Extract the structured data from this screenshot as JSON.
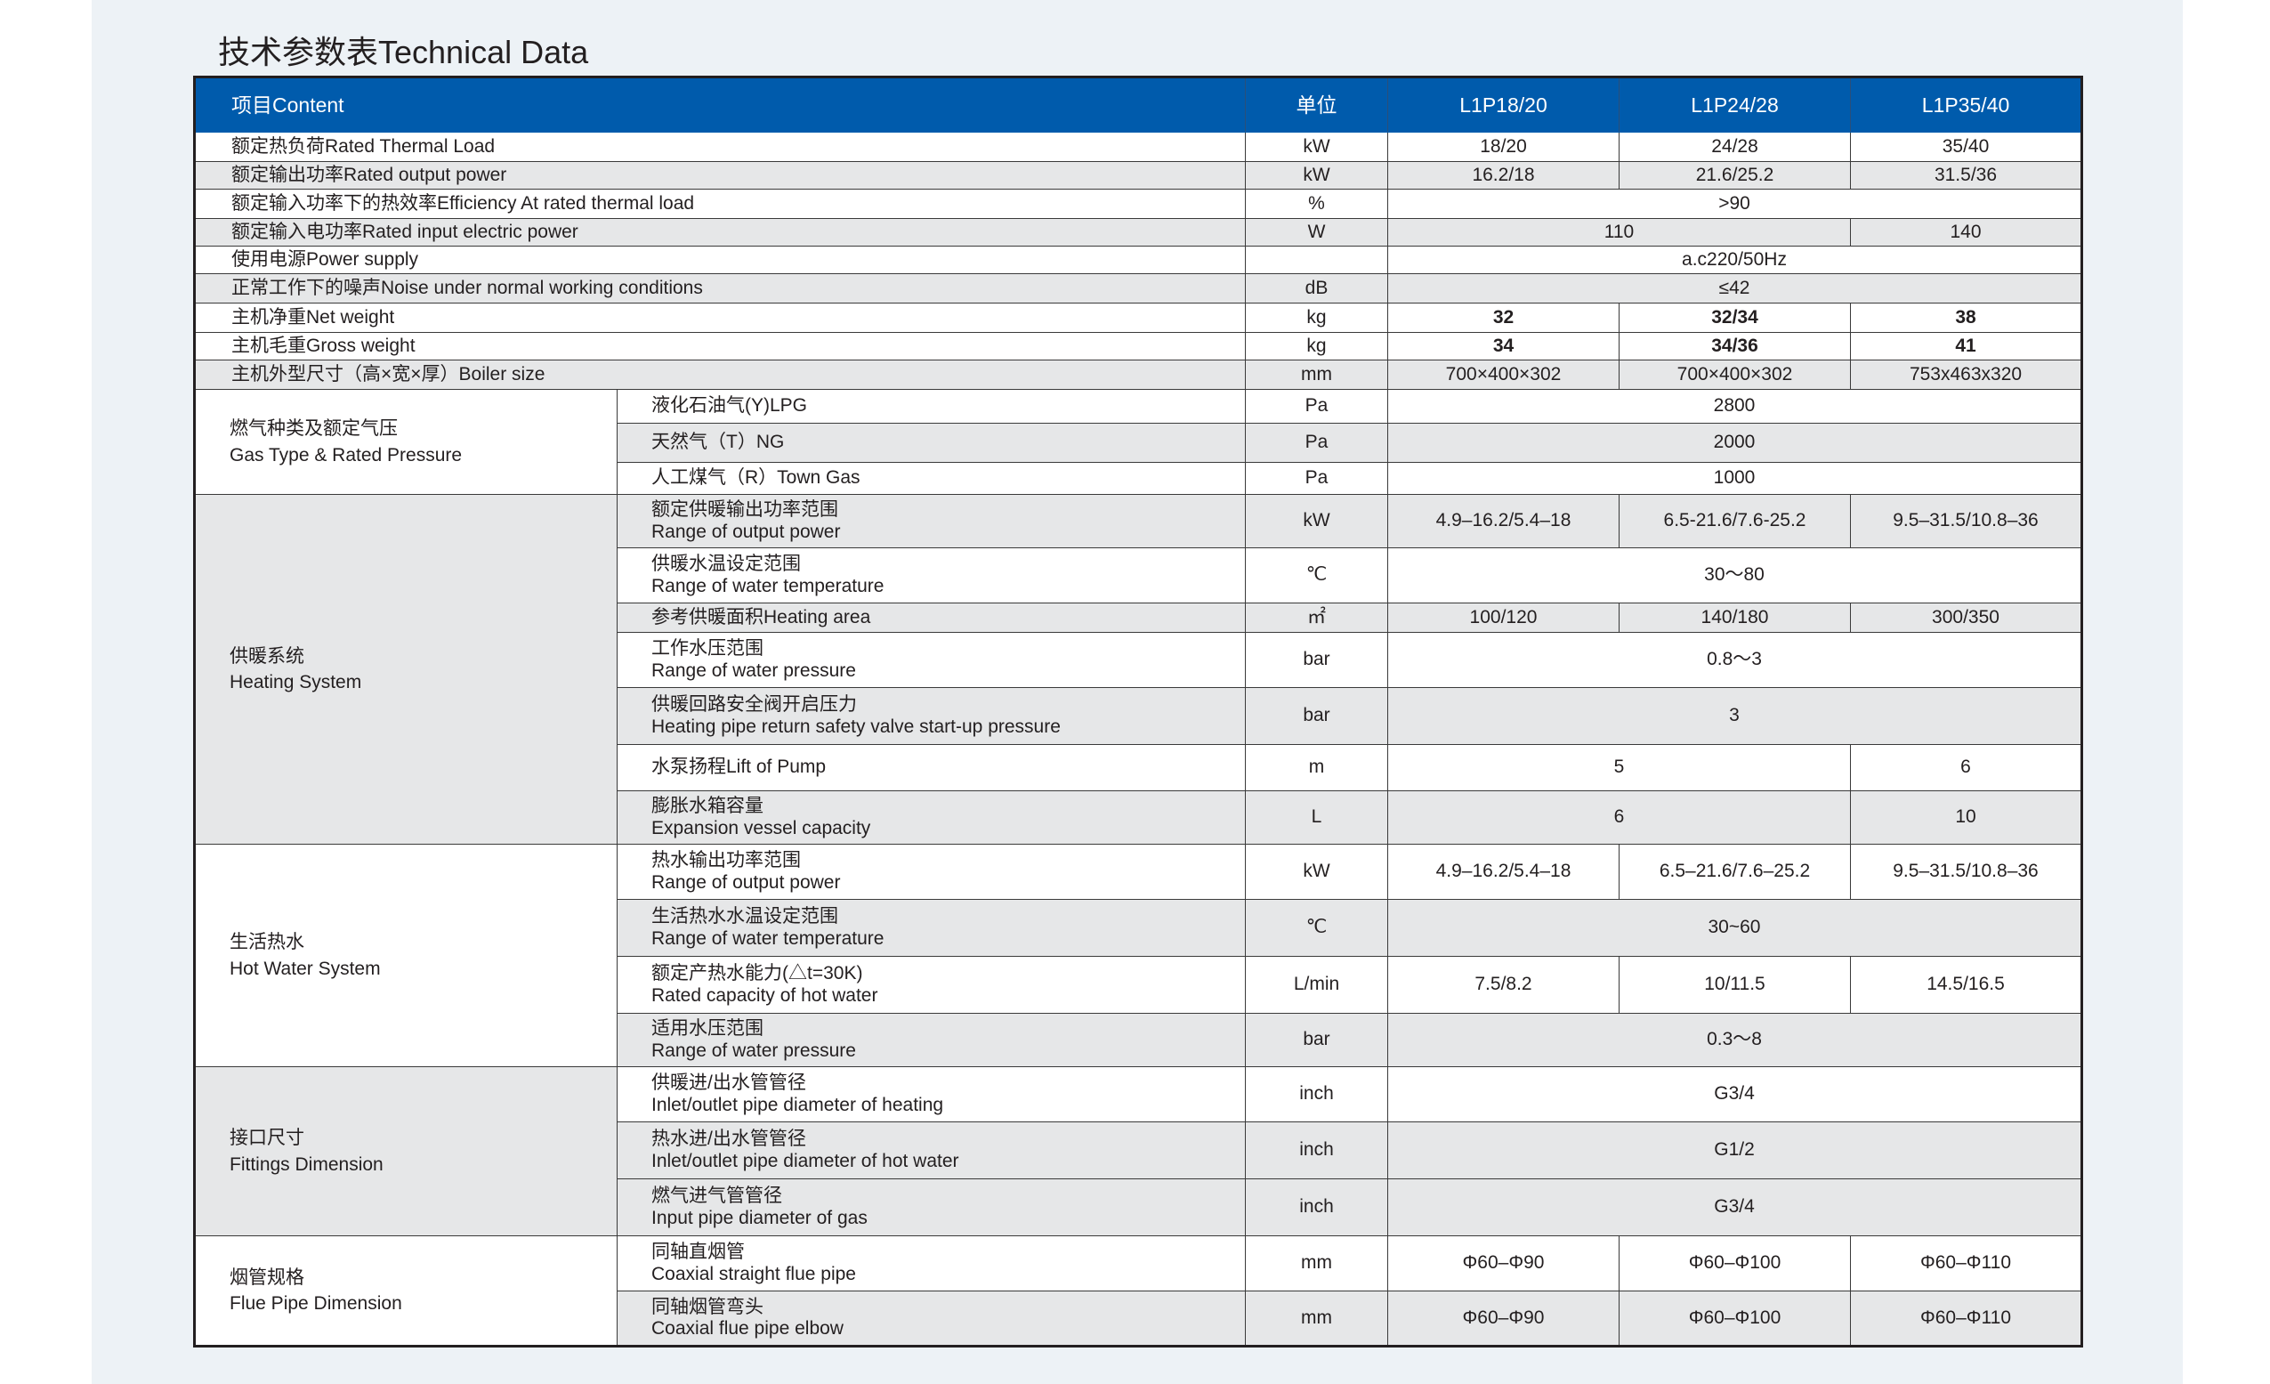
{
  "title": "技术参数表Technical Data",
  "header": {
    "content": "项目Content",
    "unit": "单位",
    "models": [
      "L1P18/20",
      "L1P24/28",
      "L1P35/40"
    ]
  },
  "colors": {
    "header_bg": "#005bac",
    "row_gray": "#e6e7e8",
    "page_bg": "#edf2f6"
  },
  "simple_rows": [
    {
      "label": "额定热负荷Rated Thermal Load",
      "unit": "kW",
      "bg": "w",
      "values": [
        {
          "text": "18/20",
          "span": 1
        },
        {
          "text": "24/28",
          "span": 1
        },
        {
          "text": "35/40",
          "span": 1
        }
      ]
    },
    {
      "label": "额定输出功率Rated output power",
      "unit": "kW",
      "bg": "g",
      "values": [
        {
          "text": "16.2/18",
          "span": 1
        },
        {
          "text": "21.6/25.2",
          "span": 1
        },
        {
          "text": "31.5/36",
          "span": 1
        }
      ]
    },
    {
      "label": "额定输入功率下的热效率Efficiency At rated thermal load",
      "unit": "%",
      "bg": "w",
      "values": [
        {
          "text": ">90",
          "span": 3
        }
      ]
    },
    {
      "label": "额定输入电功率Rated input electric power",
      "unit": "W",
      "bg": "g",
      "values": [
        {
          "text": "110",
          "span": 2
        },
        {
          "text": "140",
          "span": 1
        }
      ]
    },
    {
      "label": "使用电源Power supply",
      "unit": "",
      "bg": "w",
      "values": [
        {
          "text": "a.c220/50Hz",
          "span": 3
        }
      ]
    },
    {
      "label": "正常工作下的噪声Noise under normal working conditions",
      "unit": "dB",
      "bg": "g",
      "values": [
        {
          "text": "≤42",
          "span": 3
        }
      ]
    },
    {
      "label": "主机净重Net weight",
      "unit": "kg",
      "bg": "w",
      "bold": true,
      "values": [
        {
          "text": "32",
          "span": 1
        },
        {
          "text": "32/34",
          "span": 1
        },
        {
          "text": "38",
          "span": 1
        }
      ]
    },
    {
      "label": "主机毛重Gross weight",
      "unit": "kg",
      "bg": "w",
      "bold": true,
      "values": [
        {
          "text": "34",
          "span": 1
        },
        {
          "text": "34/36",
          "span": 1
        },
        {
          "text": "41",
          "span": 1
        }
      ]
    },
    {
      "label": "主机外型尺寸（高×宽×厚）Boiler size",
      "unit": "mm",
      "bg": "g",
      "values": [
        {
          "text": "700×400×302",
          "span": 1
        },
        {
          "text": "700×400×302",
          "span": 1
        },
        {
          "text": "753x463x320",
          "span": 1
        }
      ]
    }
  ],
  "groups": [
    {
      "label_cn": "燃气种类及额定气压",
      "label_en": "Gas Type & Rated Pressure",
      "bg": "w",
      "rows": [
        {
          "cn": "液化石油气(Y)LPG",
          "en": "",
          "unit": "Pa",
          "bg": "w",
          "values": [
            {
              "text": "2800",
              "span": 3
            }
          ]
        },
        {
          "cn": "天然气（T）NG",
          "en": "",
          "unit": "Pa",
          "bg": "g",
          "values": [
            {
              "text": "2000",
              "span": 3
            }
          ]
        },
        {
          "cn": "人工煤气（R）Town Gas",
          "en": "",
          "unit": "Pa",
          "bg": "w",
          "values": [
            {
              "text": "1000",
              "span": 3
            }
          ]
        }
      ]
    },
    {
      "label_cn": "供暖系统",
      "label_en": "Heating System",
      "bg": "g",
      "rows": [
        {
          "cn": "额定供暖输出功率范围",
          "en": "Range of output power",
          "unit": "kW",
          "bg": "g",
          "values": [
            {
              "text": "4.9–16.2/5.4–18",
              "span": 1
            },
            {
              "text": "6.5-21.6/7.6-25.2",
              "span": 1
            },
            {
              "text": "9.5–31.5/10.8–36",
              "span": 1
            }
          ]
        },
        {
          "cn": "供暖水温设定范围",
          "en": "Range of water temperature",
          "unit": "℃",
          "bg": "w",
          "values": [
            {
              "text": "30～80",
              "span": 3
            }
          ]
        },
        {
          "cn": "参考供暖面积Heating area",
          "en": "",
          "unit": "㎡",
          "bg": "g",
          "values": [
            {
              "text": "100/120",
              "span": 1
            },
            {
              "text": "140/180",
              "span": 1
            },
            {
              "text": "300/350",
              "span": 1
            }
          ]
        },
        {
          "cn": "工作水压范围",
          "en": "Range of water pressure",
          "unit": "bar",
          "bg": "w",
          "values": [
            {
              "text": "0.8～3",
              "span": 3
            }
          ]
        },
        {
          "cn": "供暖回路安全阀开启压力",
          "en": "Heating pipe return safety valve start-up pressure",
          "unit": "bar",
          "bg": "g",
          "values": [
            {
              "text": "3",
              "span": 3
            }
          ]
        },
        {
          "cn": "水泵扬程Lift of Pump",
          "en": "",
          "unit": "m",
          "bg": "w",
          "values": [
            {
              "text": "5",
              "span": 2
            },
            {
              "text": "6",
              "span": 1
            }
          ]
        },
        {
          "cn": "膨胀水箱容量",
          "en": "Expansion vessel capacity",
          "unit": "L",
          "bg": "g",
          "values": [
            {
              "text": "6",
              "span": 2
            },
            {
              "text": "10",
              "span": 1
            }
          ]
        }
      ]
    },
    {
      "label_cn": "生活热水",
      "label_en": "Hot Water System",
      "bg": "w",
      "rows": [
        {
          "cn": "热水输出功率范围",
          "en": "Range of output power",
          "unit": "kW",
          "bg": "w",
          "values": [
            {
              "text": "4.9–16.2/5.4–18",
              "span": 1
            },
            {
              "text": "6.5–21.6/7.6–25.2",
              "span": 1
            },
            {
              "text": "9.5–31.5/10.8–36",
              "span": 1
            }
          ]
        },
        {
          "cn": "生活热水水温设定范围",
          "en": "Range of water temperature",
          "unit": "℃",
          "bg": "g",
          "values": [
            {
              "text": "30~60",
              "span": 3
            }
          ]
        },
        {
          "cn": "额定产热水能力(△t=30K)",
          "en": "Rated capacity of hot water",
          "unit": "L/min",
          "bg": "w",
          "values": [
            {
              "text": "7.5/8.2",
              "span": 1
            },
            {
              "text": "10/11.5",
              "span": 1
            },
            {
              "text": "14.5/16.5",
              "span": 1
            }
          ]
        },
        {
          "cn": "适用水压范围",
          "en": "Range of water pressure",
          "unit": "bar",
          "bg": "g",
          "values": [
            {
              "text": "0.3～8",
              "span": 3
            }
          ]
        }
      ]
    },
    {
      "label_cn": "接口尺寸",
      "label_en": "Fittings Dimension",
      "bg": "g",
      "rows": [
        {
          "cn": "供暖进/出水管管径",
          "en": "Inlet/outlet pipe diameter of heating",
          "unit": "inch",
          "bg": "w",
          "values": [
            {
              "text": "G3/4",
              "span": 3
            }
          ]
        },
        {
          "cn": "热水进/出水管管径",
          "en": "Inlet/outlet pipe diameter of hot water",
          "unit": "inch",
          "bg": "g",
          "values": [
            {
              "text": "G1/2",
              "span": 3
            }
          ]
        },
        {
          "cn": "燃气进气管管径",
          "en": "Input pipe diameter of gas",
          "unit": "inch",
          "bg": "g",
          "values": [
            {
              "text": "G3/4",
              "span": 3
            }
          ]
        }
      ]
    },
    {
      "label_cn": "烟管规格",
      "label_en": "Flue Pipe Dimension",
      "bg": "w",
      "rows": [
        {
          "cn": "同轴直烟管",
          "en": "Coaxial straight flue pipe",
          "unit": "mm",
          "bg": "w",
          "values": [
            {
              "text": "Φ60–Φ90",
              "span": 1
            },
            {
              "text": "Φ60–Φ100",
              "span": 1
            },
            {
              "text": "Φ60–Φ110",
              "span": 1
            }
          ]
        },
        {
          "cn": "同轴烟管弯头",
          "en": "Coaxial flue pipe elbow",
          "unit": "mm",
          "bg": "g",
          "values": [
            {
              "text": "Φ60–Φ90",
              "span": 1
            },
            {
              "text": "Φ60–Φ100",
              "span": 1
            },
            {
              "text": "Φ60–Φ110",
              "span": 1
            }
          ]
        }
      ]
    }
  ]
}
